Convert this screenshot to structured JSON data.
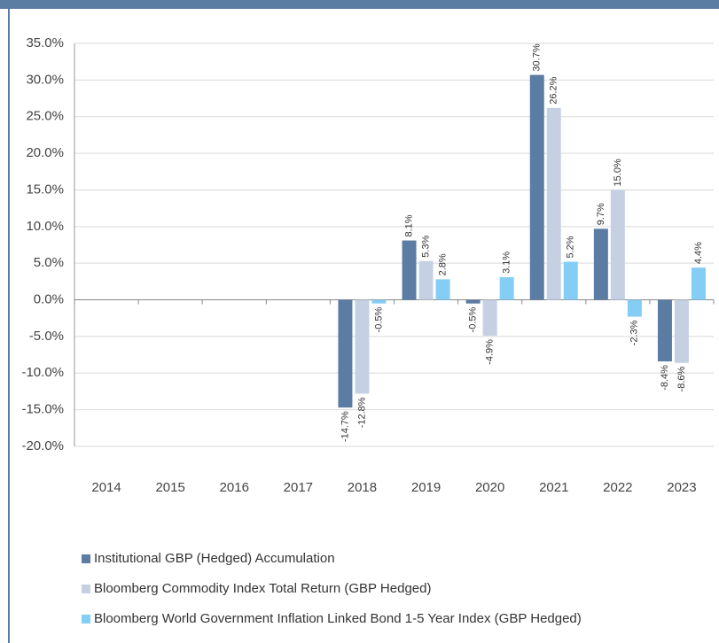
{
  "chart_data": {
    "type": "bar",
    "categories": [
      "2014",
      "2015",
      "2016",
      "2017",
      "2018",
      "2019",
      "2020",
      "2021",
      "2022",
      "2023"
    ],
    "series": [
      {
        "name": "Institutional GBP (Hedged) Accumulation",
        "color": "#5b7ca3",
        "values": [
          null,
          null,
          null,
          null,
          -14.7,
          8.1,
          -0.5,
          30.7,
          9.7,
          -8.4
        ],
        "value_labels": [
          null,
          null,
          null,
          null,
          "-14.7%",
          "8.1%",
          "-0.5%",
          "30.7%",
          "9.7%",
          "-8.4%"
        ]
      },
      {
        "name": "Bloomberg Commodity Index Total Return (GBP Hedged)",
        "color": "#c5d1e2",
        "values": [
          null,
          null,
          null,
          null,
          -12.8,
          5.3,
          -4.9,
          26.2,
          15.0,
          -8.6
        ],
        "value_labels": [
          null,
          null,
          null,
          null,
          "-12.8%",
          "5.3%",
          "-4.9%",
          "26.2%",
          "15.0%",
          "-8.6%"
        ]
      },
      {
        "name": "Bloomberg World Government Inflation Linked Bond 1-5 Year Index (GBP Hedged)",
        "color": "#84cdf4",
        "values": [
          null,
          null,
          null,
          null,
          -0.5,
          2.8,
          3.1,
          5.2,
          -2.3,
          4.4
        ],
        "value_labels": [
          null,
          null,
          null,
          null,
          "-0.5%",
          "2.8%",
          "3.1%",
          "5.2%",
          "-2.3%",
          "4.4%"
        ]
      }
    ],
    "ylim": [
      -20,
      35
    ],
    "yticks": [
      {
        "value": -20,
        "label": "-20.0%"
      },
      {
        "value": -15,
        "label": "-15.0%"
      },
      {
        "value": -10,
        "label": "-10.0%"
      },
      {
        "value": -5,
        "label": "-5.0%"
      },
      {
        "value": 0,
        "label": "0.0%"
      },
      {
        "value": 5,
        "label": "5.0%"
      },
      {
        "value": 10,
        "label": "10.0%"
      },
      {
        "value": 15,
        "label": "15.0%"
      },
      {
        "value": 20,
        "label": "20.0%"
      },
      {
        "value": 25,
        "label": "25.0%"
      },
      {
        "value": 30,
        "label": "30.0%"
      },
      {
        "value": 35,
        "label": "35.0%"
      }
    ],
    "grid": true,
    "legend": "bottom"
  }
}
